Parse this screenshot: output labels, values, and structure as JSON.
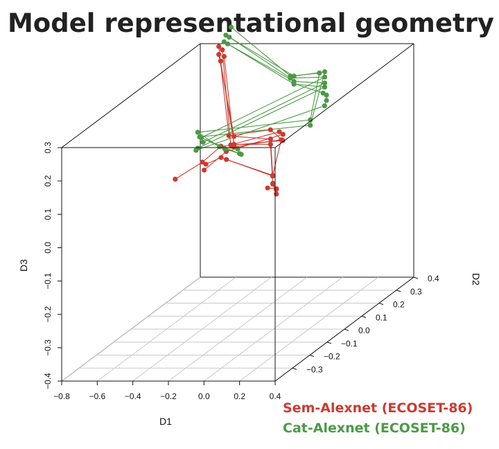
{
  "chart_data": {
    "type": "scatter",
    "title": "Model representational geometry",
    "axes": {
      "D1": {
        "label": "D1",
        "range": [
          -0.8,
          0.4
        ],
        "ticks": [
          "−0.8",
          "−0.6",
          "−0.4",
          "−0.2",
          "0.0",
          "0.2",
          "0.4"
        ]
      },
      "D2": {
        "label": "D2",
        "range": [
          -0.4,
          0.4
        ],
        "ticks": [
          "−0.3",
          "−0.2",
          "−0.1",
          "0.0",
          "0.1",
          "0.2",
          "0.3",
          "0.4"
        ]
      },
      "D3": {
        "label": "D3",
        "range": [
          -0.4,
          0.3
        ],
        "ticks": [
          "−0.4",
          "−0.3",
          "−0.2",
          "−0.1",
          "0.0",
          "0.1",
          "0.2",
          "0.3"
        ]
      }
    },
    "legend_position": "bottom-right",
    "colors": {
      "Sem-Alexnet (ECOSET-86)": "#cc3a30",
      "Cat-Alexnet (ECOSET-86)": "#4c9a45"
    },
    "series": [
      {
        "name": "Sem-Alexnet (ECOSET-86)",
        "color": "#cc3a30",
        "points": [
          [
            -0.55,
            0.25,
            0.35
          ],
          [
            -0.53,
            0.25,
            0.34
          ],
          [
            -0.54,
            0.24,
            0.33
          ],
          [
            -0.52,
            0.25,
            0.32
          ],
          [
            -0.53,
            0.24,
            0.31
          ],
          [
            -0.25,
            0.0,
            0.18
          ],
          [
            -0.22,
            -0.02,
            0.16
          ],
          [
            -0.24,
            0.02,
            0.17
          ],
          [
            -0.21,
            -0.01,
            0.15
          ],
          [
            -0.23,
            0.01,
            0.15
          ],
          [
            0.14,
            -0.16,
            0.26
          ],
          [
            0.18,
            -0.15,
            0.25
          ],
          [
            0.16,
            -0.18,
            0.24
          ],
          [
            0.2,
            -0.16,
            0.23
          ],
          [
            0.15,
            -0.17,
            0.22
          ],
          [
            0.19,
            -0.14,
            0.22
          ],
          [
            0.22,
            -0.17,
            0.25
          ],
          [
            0.25,
            -0.26,
            0.16
          ],
          [
            0.27,
            -0.28,
            0.17
          ],
          [
            0.26,
            -0.27,
            0.14
          ],
          [
            0.28,
            -0.29,
            0.15
          ],
          [
            0.27,
            -0.26,
            0.12
          ],
          [
            0.29,
            -0.28,
            0.13
          ],
          [
            0.26,
            -0.3,
            0.14
          ],
          [
            0.28,
            -0.27,
            0.11
          ],
          [
            -0.44,
            0.15,
            0.09
          ],
          [
            -0.42,
            0.16,
            0.07
          ],
          [
            -0.43,
            0.14,
            0.06
          ],
          [
            -0.41,
            0.15,
            0.05
          ],
          [
            -0.35,
            -0.05,
            0.12
          ],
          [
            -0.33,
            -0.06,
            0.1
          ],
          [
            -0.34,
            -0.04,
            0.11
          ],
          [
            -0.6,
            0.05,
            0.03
          ]
        ]
      },
      {
        "name": "Cat-Alexnet (ECOSET-86)",
        "color": "#4c9a45",
        "points": [
          [
            -0.5,
            0.27,
            0.4
          ],
          [
            -0.52,
            0.26,
            0.38
          ],
          [
            -0.51,
            0.27,
            0.37
          ],
          [
            -0.53,
            0.26,
            0.36
          ],
          [
            -0.52,
            0.27,
            0.35
          ],
          [
            -0.05,
            0.15,
            0.3
          ],
          [
            -0.03,
            0.15,
            0.3
          ],
          [
            -0.06,
            0.16,
            0.29
          ],
          [
            -0.04,
            0.16,
            0.28
          ],
          [
            -0.02,
            0.14,
            0.28
          ],
          [
            -0.05,
            0.17,
            0.27
          ],
          [
            0.24,
            0.02,
            0.36
          ],
          [
            0.26,
            0.03,
            0.36
          ],
          [
            0.25,
            0.04,
            0.34
          ],
          [
            0.27,
            0.02,
            0.33
          ],
          [
            0.25,
            0.04,
            0.31
          ],
          [
            0.26,
            0.02,
            0.3
          ],
          [
            0.27,
            0.03,
            0.29
          ],
          [
            0.26,
            0.04,
            0.27
          ],
          [
            0.24,
            0.05,
            0.25
          ],
          [
            0.14,
            0.07,
            0.2
          ],
          [
            0.13,
            0.08,
            0.18
          ],
          [
            -0.6,
            0.18,
            0.12
          ],
          [
            -0.58,
            0.17,
            0.11
          ],
          [
            -0.59,
            0.19,
            0.1
          ],
          [
            -0.57,
            0.18,
            0.09
          ],
          [
            -0.58,
            0.16,
            0.08
          ],
          [
            -0.6,
            0.17,
            0.07
          ],
          [
            -0.42,
            0.12,
            0.1
          ],
          [
            -0.4,
            0.13,
            0.09
          ],
          [
            -0.2,
            0.0,
            0.14
          ],
          [
            -0.18,
            -0.01,
            0.13
          ],
          [
            -0.19,
            0.01,
            0.12
          ]
        ]
      }
    ],
    "connection_groups": [
      [
        [
          0,
          5,
          10,
          15,
          25,
          29,
          32
        ],
        [
          1,
          6,
          11,
          16,
          26,
          30
        ],
        [
          2,
          7,
          12,
          17,
          27,
          31
        ],
        [
          3,
          8,
          13,
          18,
          28
        ],
        [
          4,
          9,
          14,
          19,
          24
        ],
        [
          20,
          21,
          22,
          23
        ]
      ],
      [
        [
          0,
          5,
          11,
          20,
          22,
          28,
          30
        ],
        [
          1,
          6,
          12,
          21,
          23,
          29,
          31
        ],
        [
          2,
          7,
          13,
          24,
          32
        ],
        [
          3,
          8,
          14,
          25
        ],
        [
          4,
          9,
          15,
          26
        ],
        [
          10,
          16,
          17,
          18,
          19,
          27
        ]
      ]
    ]
  }
}
